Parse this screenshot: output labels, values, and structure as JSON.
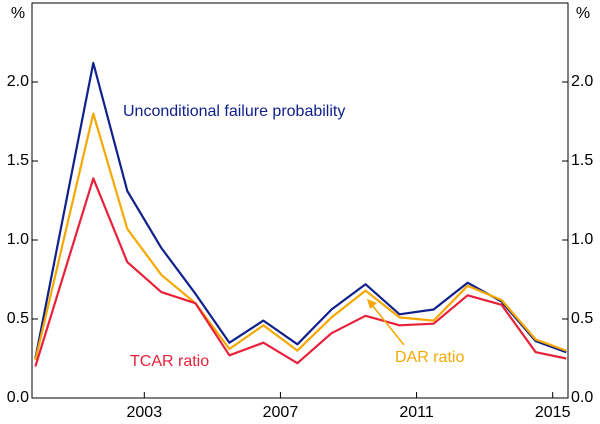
{
  "chart_data": {
    "type": "line",
    "y_unit": "%",
    "x": [
      1999.8,
      2001.5,
      2002.5,
      2003.5,
      2004.5,
      2005.5,
      2006.5,
      2007.5,
      2008.5,
      2009.5,
      2010.5,
      2011.5,
      2012.5,
      2013.5,
      2014.5,
      2015.4
    ],
    "xlim": [
      1999.7,
      2015.45
    ],
    "xticks": [
      2003,
      2007,
      2011,
      2015
    ],
    "ylim": [
      0,
      2.5
    ],
    "yticks": [
      {
        "value": 0,
        "label": "0.0"
      },
      0.5,
      {
        "value": 1,
        "label": "1.0"
      },
      1.5,
      {
        "value": 2,
        "label": "2.0"
      }
    ],
    "grid": false,
    "series": [
      {
        "name": "Unconditional failure probability",
        "color": "#10218b",
        "values": [
          0.25,
          2.12,
          1.31,
          0.95,
          0.66,
          0.35,
          0.49,
          0.34,
          0.56,
          0.72,
          0.53,
          0.56,
          0.73,
          0.61,
          0.36,
          0.29
        ]
      },
      {
        "name": "DAR ratio",
        "color": "#f5a800",
        "values": [
          0.24,
          1.8,
          1.07,
          0.78,
          0.6,
          0.31,
          0.46,
          0.3,
          0.51,
          0.68,
          0.51,
          0.49,
          0.71,
          0.62,
          0.37,
          0.3
        ]
      },
      {
        "name": "TCAR ratio",
        "color": "#e8213a",
        "values": [
          0.2,
          1.39,
          0.86,
          0.67,
          0.6,
          0.27,
          0.35,
          0.22,
          0.41,
          0.52,
          0.46,
          0.47,
          0.65,
          0.59,
          0.29,
          0.25
        ]
      }
    ]
  }
}
